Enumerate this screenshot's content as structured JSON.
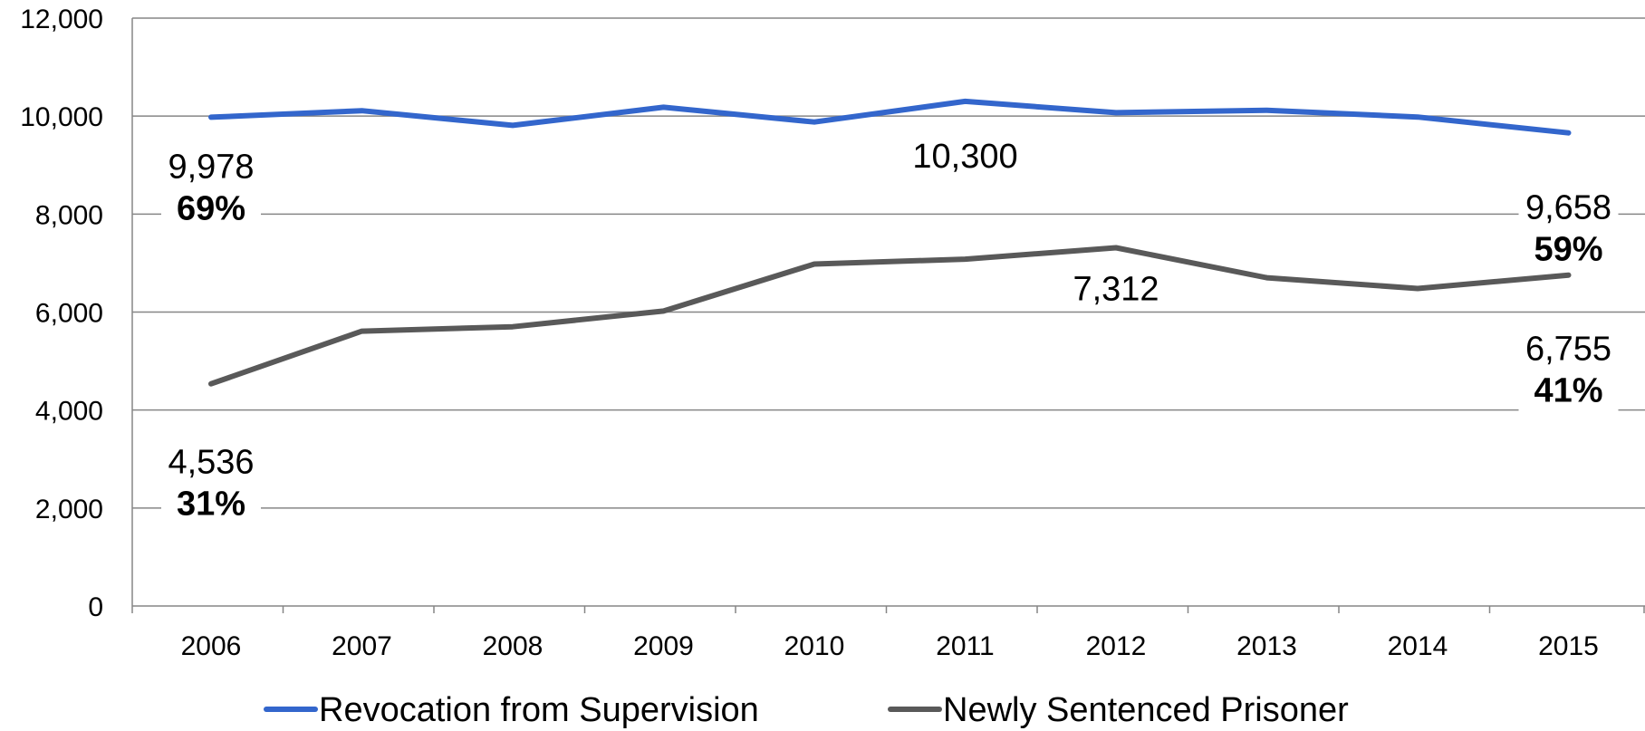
{
  "chart_data": {
    "type": "line",
    "title": "",
    "xlabel": "",
    "ylabel": "",
    "x": [
      "2006",
      "2007",
      "2008",
      "2009",
      "2010",
      "2011",
      "2012",
      "2013",
      "2014",
      "2015"
    ],
    "ylim": [
      0,
      12000
    ],
    "yticks": [
      0,
      2000,
      4000,
      6000,
      8000,
      10000,
      12000
    ],
    "ytick_labels": [
      "0",
      "2,000",
      "4,000",
      "6,000",
      "8,000",
      "10,000",
      "12,000"
    ],
    "grid": true,
    "legend_position": "bottom",
    "series": [
      {
        "name": "Revocation from Supervision",
        "color": "#3366CC",
        "values": [
          9978,
          10110,
          9810,
          10180,
          9880,
          10300,
          10070,
          10120,
          9980,
          9658
        ]
      },
      {
        "name": "Newly Sentenced Prisoner",
        "color": "#595959",
        "values": [
          4536,
          5610,
          5700,
          6020,
          6980,
          7080,
          7312,
          6700,
          6480,
          6755
        ]
      }
    ],
    "annotations": [
      {
        "series": 0,
        "index": 0,
        "value_text": "9,978",
        "pct_text": "69%"
      },
      {
        "series": 0,
        "index": 5,
        "value_text": "10,300",
        "pct_text": ""
      },
      {
        "series": 0,
        "index": 9,
        "value_text": "9,658",
        "pct_text": "59%"
      },
      {
        "series": 1,
        "index": 0,
        "value_text": "4,536",
        "pct_text": "31%"
      },
      {
        "series": 1,
        "index": 6,
        "value_text": "7,312",
        "pct_text": ""
      },
      {
        "series": 1,
        "index": 9,
        "value_text": "6,755",
        "pct_text": "41%"
      }
    ]
  }
}
